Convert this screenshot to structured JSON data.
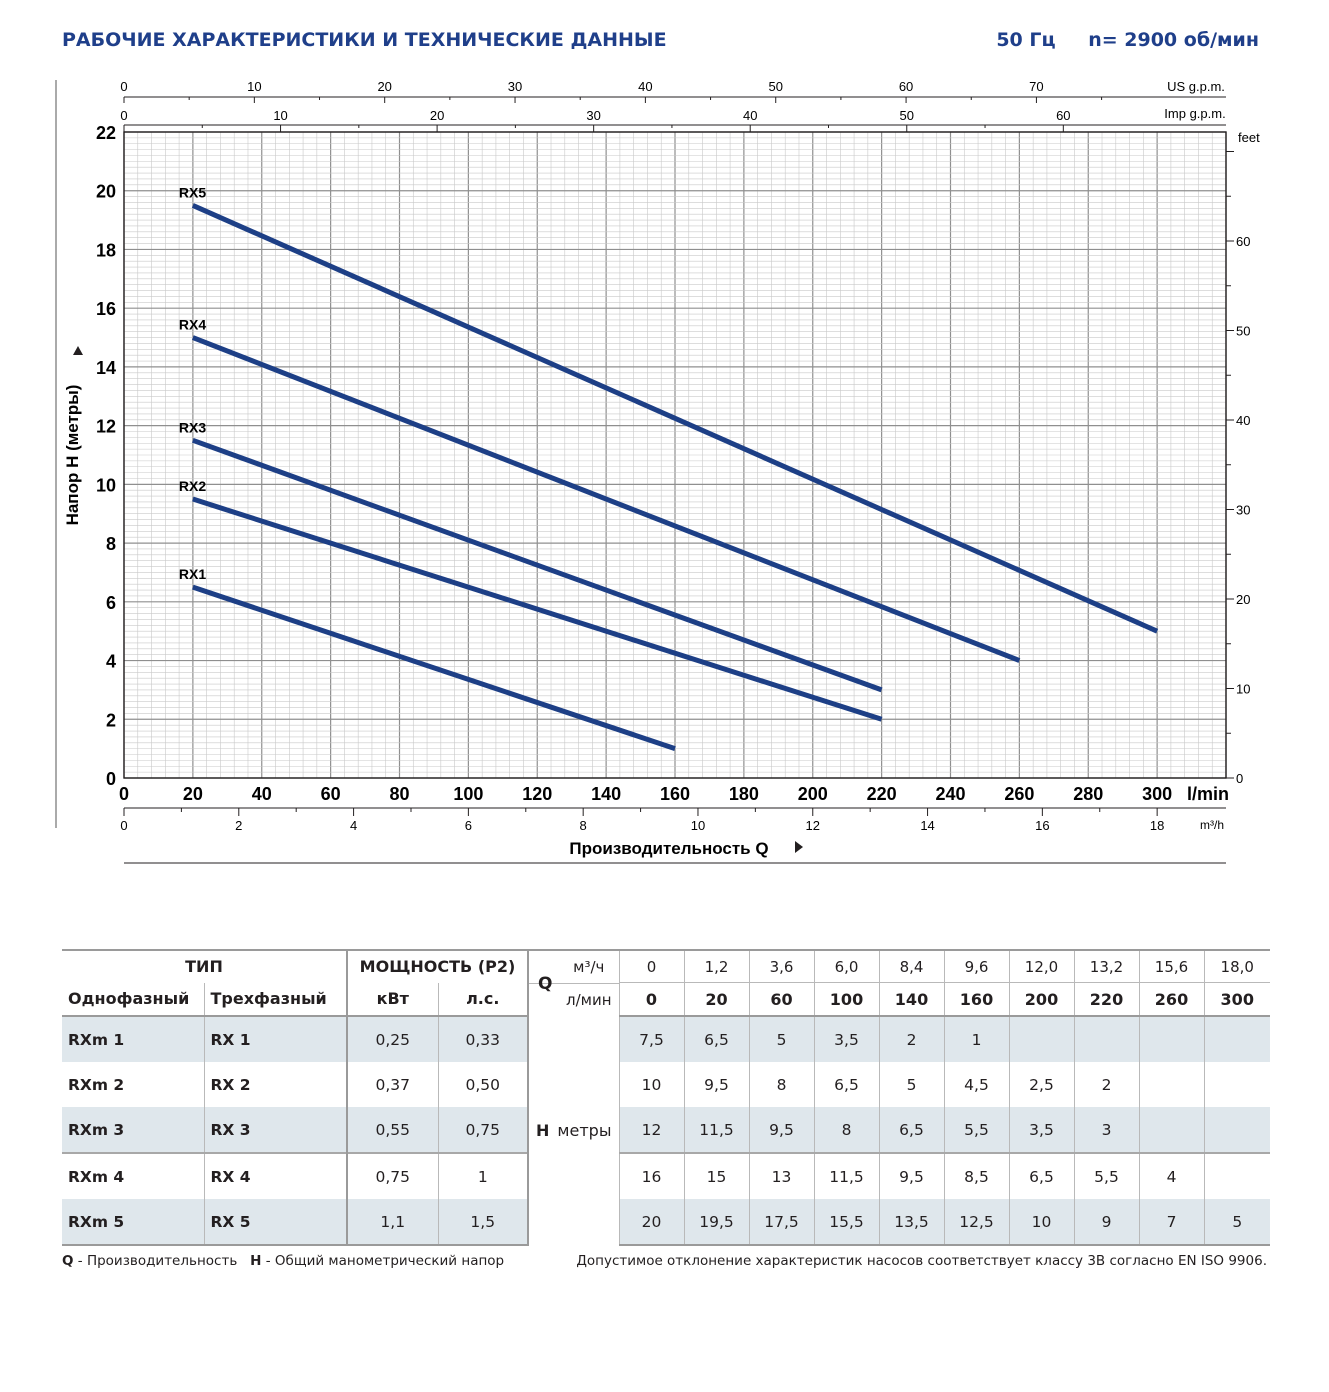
{
  "header": {
    "title": "РАБОЧИЕ ХАРАКТЕРИСТИКИ И ТЕХНИЧЕСКИЕ ДАННЫЕ",
    "freq": "50 Гц",
    "speed": "n= 2900 об/мин"
  },
  "chart_data": {
    "type": "line",
    "ylabel": "Напор H (метры)",
    "xlabel": "Производительность Q",
    "x_unit": "l/min",
    "ylim": [
      0,
      22
    ],
    "xlim": [
      0,
      320
    ],
    "grid": true,
    "y_ticks": [
      0,
      2,
      4,
      6,
      8,
      10,
      12,
      14,
      16,
      18,
      20,
      22
    ],
    "x_ticks": [
      0,
      20,
      40,
      60,
      80,
      100,
      120,
      140,
      160,
      180,
      200,
      220,
      240,
      260,
      280,
      300
    ],
    "secondary_axes": {
      "us_gpm": {
        "label": "US g.p.m.",
        "ticks": [
          0,
          10,
          20,
          30,
          40,
          50,
          60,
          70
        ],
        "lpm_per_unit": 3.785
      },
      "imp_gpm": {
        "label": "Imp g.p.m.",
        "ticks": [
          0,
          10,
          20,
          30,
          40,
          50,
          60
        ],
        "lpm_per_unit": 4.546
      },
      "feet": {
        "label": "feet",
        "ticks": [
          0,
          10,
          20,
          30,
          40,
          50,
          60
        ],
        "m_per_unit": 0.3048
      },
      "m3h": {
        "label": "m³/h",
        "ticks": [
          0,
          2,
          4,
          6,
          8,
          10,
          12,
          14,
          16,
          18
        ],
        "lpm_per_unit": 16.667
      }
    },
    "series": [
      {
        "name": "RX1",
        "x": [
          20,
          160
        ],
        "y": [
          6.5,
          1
        ]
      },
      {
        "name": "RX2",
        "x": [
          20,
          220
        ],
        "y": [
          9.5,
          2
        ]
      },
      {
        "name": "RX3",
        "x": [
          20,
          220
        ],
        "y": [
          11.5,
          3
        ]
      },
      {
        "name": "RX4",
        "x": [
          20,
          260
        ],
        "y": [
          15,
          4
        ]
      },
      {
        "name": "RX5",
        "x": [
          20,
          300
        ],
        "y": [
          19.5,
          5
        ]
      }
    ],
    "line_color": "#1d3f86"
  },
  "table": {
    "type_label": "ТИП",
    "power_label": "МОЩНОСТЬ (P2)",
    "single_phase": "Однофазный",
    "three_phase": "Трехфазный",
    "kw": "кВт",
    "hp": "л.с.",
    "q_letter": "Q",
    "q_unit_m3": "м³/ч",
    "q_unit_lmin": "л/мин",
    "h_letter": "H",
    "h_unit": "метры",
    "q_m3h": [
      "0",
      "1,2",
      "3,6",
      "6,0",
      "8,4",
      "9,6",
      "12,0",
      "13,2",
      "15,6",
      "18,0"
    ],
    "q_lmin": [
      "0",
      "20",
      "60",
      "100",
      "140",
      "160",
      "200",
      "220",
      "260",
      "300"
    ],
    "rows": [
      {
        "single": "RXm 1",
        "three": "RX 1",
        "kw": "0,25",
        "hp": "0,33",
        "h": [
          "7,5",
          "6,5",
          "5",
          "3,5",
          "2",
          "1",
          "",
          "",
          "",
          ""
        ]
      },
      {
        "single": "RXm 2",
        "three": "RX 2",
        "kw": "0,37",
        "hp": "0,50",
        "h": [
          "10",
          "9,5",
          "8",
          "6,5",
          "5",
          "4,5",
          "2,5",
          "2",
          "",
          ""
        ]
      },
      {
        "single": "RXm 3",
        "three": "RX 3",
        "kw": "0,55",
        "hp": "0,75",
        "h": [
          "12",
          "11,5",
          "9,5",
          "8",
          "6,5",
          "5,5",
          "3,5",
          "3",
          "",
          ""
        ]
      },
      {
        "single": "RXm 4",
        "three": "RX 4",
        "kw": "0,75",
        "hp": "1",
        "h": [
          "16",
          "15",
          "13",
          "11,5",
          "9,5",
          "8,5",
          "6,5",
          "5,5",
          "4",
          ""
        ]
      },
      {
        "single": "RXm 5",
        "three": "RX 5",
        "kw": "1,1",
        "hp": "1,5",
        "h": [
          "20",
          "19,5",
          "17,5",
          "15,5",
          "13,5",
          "12,5",
          "10",
          "9",
          "7",
          "5"
        ]
      }
    ]
  },
  "footer": {
    "q_letter": "Q",
    "q_text": " - Производительность",
    "h_letter": "H",
    "h_text": " - Общий манометрический напор",
    "tolerance": "Допустимое отклонение характеристик насосов соответствует классу 3B согласно EN ISO 9906."
  }
}
